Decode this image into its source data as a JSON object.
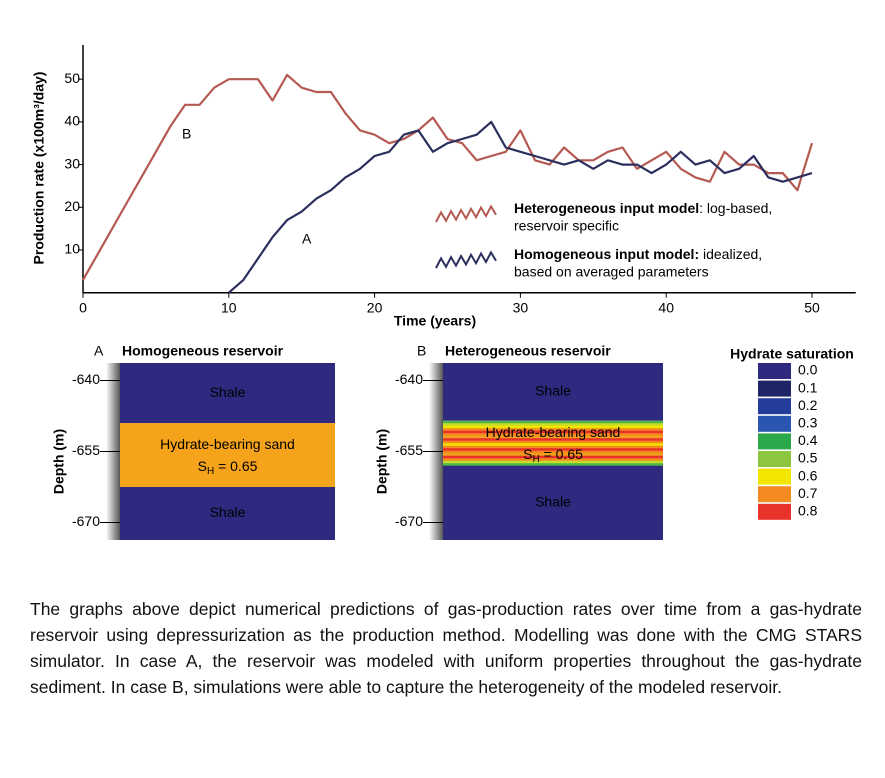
{
  "chart_data": [
    {
      "type": "line",
      "y_label": "Production rate (x100m³/day)",
      "x_label": "Time (years)",
      "x": [
        0,
        1,
        2,
        3,
        4,
        5,
        6,
        7,
        8,
        9,
        10,
        11,
        12,
        13,
        14,
        15,
        16,
        17,
        18,
        19,
        20,
        21,
        22,
        23,
        24,
        25,
        26,
        27,
        28,
        29,
        30,
        31,
        32,
        33,
        34,
        35,
        36,
        37,
        38,
        39,
        40,
        41,
        42,
        43,
        44,
        45,
        46,
        47,
        48,
        49,
        50
      ],
      "xlim": [
        0,
        53
      ],
      "xticks": [
        0,
        10,
        20,
        30,
        40,
        50
      ],
      "ylim": [
        0,
        58
      ],
      "yticks": [
        10,
        20,
        30,
        40,
        50
      ],
      "series": [
        {
          "name": "Heterogeneous input model",
          "desc": [
            ": log-based,",
            "reservoir specific"
          ],
          "color": "#b45a52",
          "values": [
            3,
            9,
            15,
            21,
            27,
            33,
            39,
            44,
            44,
            48,
            50,
            50,
            50,
            45,
            51,
            48,
            47,
            47,
            42,
            38,
            37,
            35,
            36,
            38,
            41,
            36,
            35,
            31,
            32,
            33,
            38,
            31,
            30,
            34,
            31,
            31,
            33,
            34,
            29,
            31,
            33,
            29,
            27,
            26,
            33,
            30,
            30,
            28,
            28,
            24,
            35
          ]
        },
        {
          "name": "Homogeneous input model:",
          "desc": [
            " idealized,",
            "based on averaged parameters"
          ],
          "color": "#2b2f5e",
          "values": [
            null,
            null,
            null,
            null,
            null,
            null,
            null,
            null,
            null,
            null,
            0,
            3,
            8,
            13,
            17,
            19,
            22,
            24,
            27,
            29,
            32,
            33,
            37,
            38,
            33,
            35,
            36,
            37,
            40,
            34,
            33,
            32,
            31,
            30,
            31,
            29,
            31,
            30,
            30,
            28,
            30,
            33,
            30,
            31,
            28,
            29,
            32,
            27,
            26,
            27,
            28
          ]
        }
      ],
      "annotations": [
        {
          "text": "B",
          "color": "#8b2a30"
        },
        {
          "text": "A",
          "color": "#2b2f5e"
        }
      ]
    },
    {
      "type": "layers",
      "label": "A",
      "title": "Homogeneous reservoir",
      "y_label": "Depth (m)",
      "ylim": [
        -673.7,
        -636.3
      ],
      "yticks": [
        -640,
        -655,
        -670
      ],
      "layers": [
        {
          "top": -636.3,
          "bottom": -649,
          "color": "#2e2a80",
          "text": [
            "Shale"
          ]
        },
        {
          "top": -649,
          "bottom": -662.5,
          "color": "#f5a31a",
          "text": [
            "Hydrate-bearing sand"
          ],
          "sh": {
            "main": "S",
            "sub": "H",
            "rest": " = 0.65"
          }
        },
        {
          "top": -662.5,
          "bottom": -673.7,
          "color": "#2e2a80",
          "text": [
            "Shale"
          ]
        }
      ]
    },
    {
      "type": "layers",
      "label": "B",
      "title": "Heterogeneous reservoir",
      "y_label": "Depth (m)",
      "ylim": [
        -673.7,
        -636.3
      ],
      "yticks": [
        -640,
        -655,
        -670
      ],
      "layers": [
        {
          "top": -636.3,
          "bottom": -648.5,
          "color": "#2e2a80",
          "text": [
            "Shale"
          ]
        },
        {
          "top": -648.5,
          "bottom": -658,
          "stripes": [
            "#4fb848",
            "#c8dc2a",
            "#f2e600",
            "#f38a1f",
            "#e8322a",
            "#f38a1f",
            "#f2a21f",
            "#e8322a",
            "#f38a1f",
            "#f2e600",
            "#f38a1f",
            "#e8322a",
            "#f38a1f",
            "#f2a21f",
            "#e8322a",
            "#f38a1f",
            "#c8dc2a",
            "#4fb848"
          ],
          "text": [
            "Hydrate-bearing sand"
          ],
          "sh": {
            "main": "S",
            "sub": "H",
            "rest": " = 0.65"
          }
        },
        {
          "top": -658,
          "bottom": -673.7,
          "color": "#2e2a80",
          "text": [
            "Shale"
          ]
        }
      ]
    }
  ],
  "saturation_legend": {
    "title": "Hydrate saturation",
    "items": [
      {
        "label": "0.0",
        "color": "#2e2a80"
      },
      {
        "label": "0.1",
        "color": "#1f2466"
      },
      {
        "label": "0.2",
        "color": "#253d9a"
      },
      {
        "label": "0.3",
        "color": "#2a55b0"
      },
      {
        "label": "0.4",
        "color": "#2aa84a"
      },
      {
        "label": "0.5",
        "color": "#8cc63f"
      },
      {
        "label": "0.6",
        "color": "#f2e600"
      },
      {
        "label": "0.7",
        "color": "#f38a1f"
      },
      {
        "label": "0.8",
        "color": "#e8322a"
      }
    ]
  },
  "caption": "The graphs above depict numerical predictions of gas-production rates over time from a gas-hydrate reservoir using depressurization as the production method. Modelling was done with the CMG STARS simulator. In case A, the reservoir was modeled with uniform properties throughout the gas-hydrate sediment. In case B, simulations were able to capture the heterogeneity of the modeled reservoir."
}
